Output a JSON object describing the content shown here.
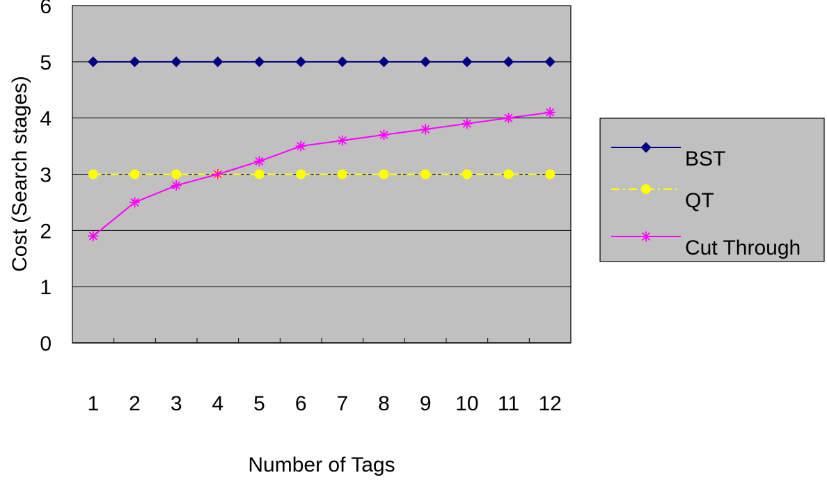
{
  "chart_data": {
    "type": "line",
    "xlabel": "Number of Tags",
    "ylabel": "Cost (Search stages)",
    "categories": [
      "1",
      "2",
      "3",
      "4",
      "5",
      "6",
      "7",
      "8",
      "9",
      "10",
      "11",
      "12"
    ],
    "ylim": [
      0,
      6
    ],
    "yticks": [
      "0",
      "1",
      "2",
      "3",
      "4",
      "5",
      "6"
    ],
    "grid": true,
    "legend_placement": "right",
    "plot_background": "#c0c0c0",
    "series": [
      {
        "name": "BST",
        "color": "#000080",
        "marker": "diamond",
        "line_style": "solid",
        "values": [
          5,
          5,
          5,
          5,
          5,
          5,
          5,
          5,
          5,
          5,
          5,
          5
        ]
      },
      {
        "name": "QT",
        "color": "#ffff00",
        "marker": "circle",
        "line_style": "dash-dot",
        "values": [
          3,
          3,
          3,
          3,
          3,
          3,
          3,
          3,
          3,
          3,
          3,
          3
        ]
      },
      {
        "name": "Cut Through",
        "color": "#ff00ff",
        "marker": "asterisk",
        "line_style": "solid",
        "values": [
          1.9,
          2.5,
          2.8,
          3.0,
          3.23,
          3.5,
          3.6,
          3.7,
          3.8,
          3.9,
          4.0,
          4.1
        ]
      }
    ]
  }
}
